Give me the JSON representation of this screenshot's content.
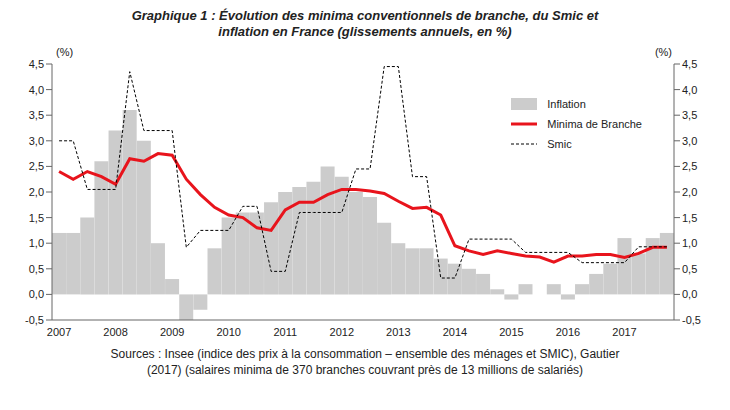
{
  "chart_data": {
    "type": "bar",
    "title": "Graphique 1 : Évolution des minima conventionnels de branche, du Smic et inflation en France (glissements annuels, en %)",
    "caption": "Sources : Insee (indice des prix à la consommation – ensemble des ménages et SMIC), Gautier (2017) (salaires minima de 370 branches couvrant près de 13 millions de salariés)",
    "y_label": "(%)",
    "y2_label": "(%)",
    "categories": [
      "2007",
      null,
      null,
      null,
      "2008",
      null,
      null,
      null,
      "2009",
      null,
      null,
      null,
      "2010",
      null,
      null,
      null,
      "2011",
      null,
      null,
      null,
      "2012",
      null,
      null,
      null,
      "2013",
      null,
      null,
      null,
      "2014",
      null,
      null,
      null,
      "2015",
      null,
      null,
      null,
      "2016",
      null,
      null,
      null,
      "2017",
      null,
      null,
      null
    ],
    "series": [
      {
        "name": "Inflation",
        "type": "bar",
        "color": "#cccccc",
        "values": [
          1.2,
          1.2,
          1.5,
          2.6,
          3.2,
          3.6,
          3.0,
          1.0,
          0.3,
          -0.5,
          -0.3,
          0.9,
          1.5,
          1.6,
          1.6,
          1.8,
          2.0,
          2.1,
          2.2,
          2.5,
          2.3,
          2.0,
          1.9,
          1.4,
          1.0,
          0.9,
          0.9,
          0.7,
          0.6,
          0.5,
          0.4,
          0.1,
          -0.1,
          0.2,
          0.0,
          0.2,
          -0.1,
          0.2,
          0.4,
          0.6,
          1.1,
          0.8,
          1.1,
          1.2
        ]
      },
      {
        "name": "Minima de Branche",
        "type": "line",
        "color": "#e8141c",
        "line_style": "solid",
        "values": [
          2.4,
          2.25,
          2.4,
          2.3,
          2.15,
          2.65,
          2.6,
          2.75,
          2.72,
          2.25,
          1.95,
          1.7,
          1.55,
          1.5,
          1.3,
          1.25,
          1.65,
          1.8,
          1.8,
          1.95,
          2.05,
          2.05,
          2.02,
          1.97,
          1.82,
          1.68,
          1.7,
          1.55,
          0.95,
          0.85,
          0.78,
          0.85,
          0.8,
          0.75,
          0.73,
          0.63,
          0.75,
          0.75,
          0.78,
          0.78,
          0.72,
          0.8,
          0.92,
          0.92
        ]
      },
      {
        "name": "Smic",
        "type": "line",
        "color": "#000000",
        "line_style": "dashed",
        "values": [
          3.0,
          3.0,
          2.05,
          2.05,
          2.05,
          4.35,
          3.2,
          3.2,
          3.2,
          0.92,
          1.25,
          1.25,
          1.25,
          1.72,
          1.72,
          0.45,
          0.45,
          1.6,
          1.6,
          1.6,
          1.6,
          2.45,
          2.45,
          4.45,
          4.45,
          2.3,
          2.3,
          0.32,
          0.32,
          1.08,
          1.08,
          1.08,
          1.08,
          0.82,
          0.82,
          0.82,
          0.82,
          0.62,
          0.62,
          0.62,
          0.62,
          0.93,
          0.93,
          0.93
        ]
      }
    ],
    "ylim": [
      -0.5,
      4.5
    ],
    "yticks": [
      {
        "value": -0.5,
        "label": "-0,5"
      },
      {
        "value": 0,
        "label": "0,0"
      },
      {
        "value": 0.5,
        "label": "0,5"
      },
      {
        "value": 1,
        "label": "1,0"
      },
      {
        "value": 1.5,
        "label": "1,5"
      },
      {
        "value": 2,
        "label": "2,0"
      },
      {
        "value": 2.5,
        "label": "2,5"
      },
      {
        "value": 3,
        "label": "3,0"
      },
      {
        "value": 3.5,
        "label": "3,5"
      },
      {
        "value": 4,
        "label": "4,0"
      },
      {
        "value": 4.5,
        "label": "4,5"
      }
    ],
    "y2lim": [
      -0.5,
      4.5
    ],
    "y2ticks": [
      {
        "value": -0.5,
        "label": "-0,5"
      },
      {
        "value": 0,
        "label": "0,0"
      },
      {
        "value": 0.5,
        "label": "0,5"
      },
      {
        "value": 1,
        "label": "1,0"
      },
      {
        "value": 1.5,
        "label": "1,5"
      },
      {
        "value": 2,
        "label": "2,0"
      },
      {
        "value": 2.5,
        "label": "2,5"
      },
      {
        "value": 3,
        "label": "3,0"
      },
      {
        "value": 3.5,
        "label": "3,5"
      },
      {
        "value": 4,
        "label": "4,0"
      },
      {
        "value": 4.5,
        "label": "4,5"
      }
    ],
    "grid": false,
    "legend": "top-right"
  }
}
